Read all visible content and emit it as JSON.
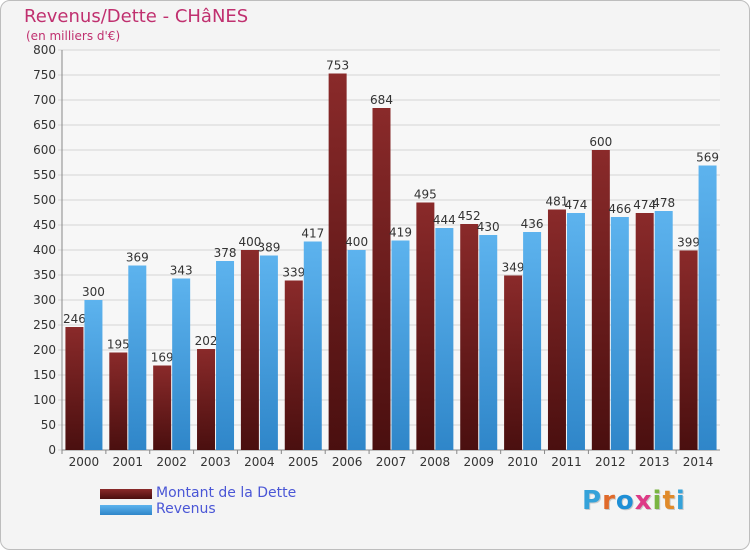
{
  "colors": {
    "title": "#c0306f",
    "legend_text": "#4a56d6",
    "dette": "#6b1e1e",
    "revenus": "#4aa3e6",
    "grid": "#d6d6d6",
    "axis_text": "#333333"
  },
  "logo": {
    "letters": [
      "P",
      "r",
      "o",
      "x",
      "i",
      "t",
      "i"
    ],
    "colors": [
      "#35a2d9",
      "#e06a2a",
      "#1e8fd6",
      "#dd3a86",
      "#7ab542",
      "#e08a2a",
      "#35a2d9"
    ]
  },
  "chart_data": {
    "type": "bar",
    "title": "Revenus/Dette - CHâNES",
    "subtitle": "(en milliers d'€)",
    "categories": [
      "2000",
      "2001",
      "2002",
      "2003",
      "2004",
      "2005",
      "2006",
      "2007",
      "2008",
      "2009",
      "2010",
      "2011",
      "2012",
      "2013",
      "2014"
    ],
    "series": [
      {
        "name": "Montant de la Dette",
        "values": [
          246,
          195,
          169,
          202,
          400,
          339,
          753,
          684,
          495,
          452,
          349,
          481,
          600,
          474,
          399
        ]
      },
      {
        "name": "Revenus",
        "values": [
          300,
          369,
          343,
          378,
          389,
          417,
          400,
          419,
          444,
          430,
          436,
          474,
          466,
          478,
          569
        ]
      }
    ],
    "ylim": [
      0,
      800
    ],
    "yticks": [
      "0",
      "50",
      "100",
      "150",
      "200",
      "250",
      "300",
      "350",
      "400",
      "450",
      "500",
      "550",
      "600",
      "650",
      "700",
      "750",
      "800"
    ],
    "grid": true,
    "legend_position": "bottom-left"
  }
}
